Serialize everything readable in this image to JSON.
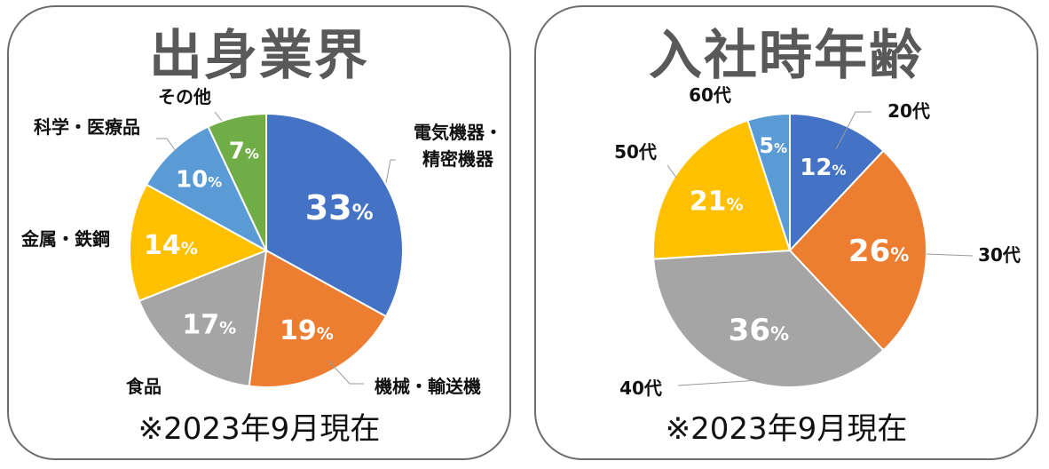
{
  "chart_data": [
    {
      "type": "pie",
      "title": "出身業界",
      "footnote": "※2023年9月現在",
      "slices": [
        {
          "label": "電気機器・精密機器",
          "label_lines": [
            "電気機器・",
            "精密機器"
          ],
          "value": 33,
          "color": "#4472c4"
        },
        {
          "label": "機械・輸送機",
          "label_lines": [
            "機械・輸送機"
          ],
          "value": 19,
          "color": "#ed7d31"
        },
        {
          "label": "食品",
          "label_lines": [
            "食品"
          ],
          "value": 17,
          "color": "#a5a5a5"
        },
        {
          "label": "金属・鉄鋼",
          "label_lines": [
            "金属・鉄鋼"
          ],
          "value": 14,
          "color": "#ffc000"
        },
        {
          "label": "科学・医療品",
          "label_lines": [
            "科学・医療品"
          ],
          "value": 10,
          "color": "#5b9bd5"
        },
        {
          "label": "その他",
          "label_lines": [
            "その他"
          ],
          "value": 7,
          "color": "#70ad47"
        }
      ]
    },
    {
      "type": "pie",
      "title": "入社時年齢",
      "footnote": "※2023年9月現在",
      "slices": [
        {
          "label": "20代",
          "label_lines": [
            "20代"
          ],
          "value": 12,
          "color": "#4472c4"
        },
        {
          "label": "30代",
          "label_lines": [
            "30代"
          ],
          "value": 26,
          "color": "#ed7d31"
        },
        {
          "label": "40代",
          "label_lines": [
            "40代"
          ],
          "value": 36,
          "color": "#a5a5a5"
        },
        {
          "label": "50代",
          "label_lines": [
            "50代"
          ],
          "value": 21,
          "color": "#ffc000"
        },
        {
          "label": "60代",
          "label_lines": [
            "60代"
          ],
          "value": 5,
          "color": "#5b9bd5"
        }
      ]
    }
  ],
  "percent_sign": "%"
}
